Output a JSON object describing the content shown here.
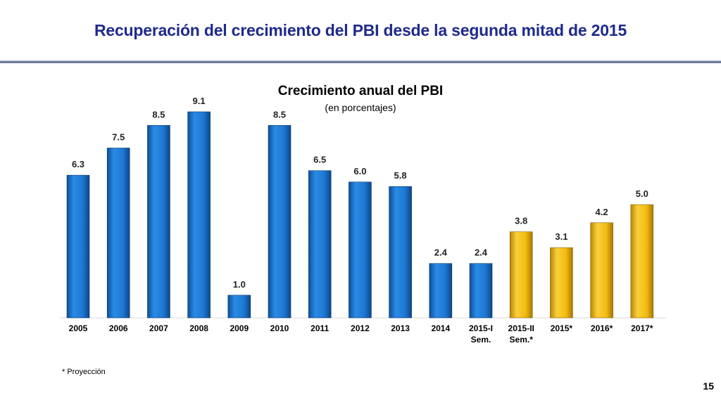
{
  "slide": {
    "title": "Recuperación del crecimiento del PBI desde la segunda mitad de 2015",
    "footnote": "* Proyección",
    "page_number": "15"
  },
  "chart_data": {
    "type": "bar",
    "title": "Crecimiento anual del PBI",
    "subtitle": "(en porcentajes)",
    "categories": [
      "2005",
      "2006",
      "2007",
      "2008",
      "2009",
      "2010",
      "2011",
      "2012",
      "2013",
      "2014",
      "2015-I Sem.",
      "2015-II Sem.*",
      "2015*",
      "2016*",
      "2017*"
    ],
    "values": [
      6.3,
      7.5,
      8.5,
      9.1,
      1.0,
      8.5,
      6.5,
      6.0,
      5.8,
      2.4,
      2.4,
      3.8,
      3.1,
      4.2,
      5.0
    ],
    "value_labels": [
      "6.3",
      "7.5",
      "8.5",
      "9.1",
      "1.0",
      "8.5",
      "6.5",
      "6.0",
      "5.8",
      "2.4",
      "2.4",
      "3.8",
      "3.1",
      "4.2",
      "5.0"
    ],
    "highlight": [
      false,
      false,
      false,
      false,
      false,
      false,
      false,
      false,
      false,
      false,
      false,
      true,
      true,
      true,
      true
    ],
    "colors": {
      "default": "#1E78D2",
      "highlight": "#F2BB10"
    },
    "ylim": [
      0,
      10
    ],
    "xlabel": "",
    "ylabel": "",
    "grid": false,
    "legend": "none"
  }
}
